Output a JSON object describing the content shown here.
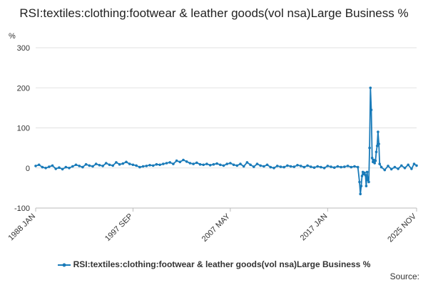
{
  "chart_data": {
    "type": "line",
    "title": "RSI:textiles:clothing:footwear & leather goods(vol nsa)Large Business %",
    "ylabel": "%",
    "ylim": [
      -100,
      300
    ],
    "yticks": [
      -100,
      0,
      100,
      200,
      300
    ],
    "xlim": [
      "1988-01",
      "2025-11"
    ],
    "xticks": [
      "1988 JAN",
      "1997 SEP",
      "2007 MAY",
      "2017 JAN",
      "2025 NOV"
    ],
    "grid": true,
    "legend_position": "bottom",
    "series": [
      {
        "name": "RSI:textiles:clothing:footwear & leather goods(vol nsa)Large Business %",
        "color": "#1a7bb9",
        "points": [
          [
            "1988-01",
            5
          ],
          [
            "1988-05",
            8
          ],
          [
            "1988-09",
            2
          ],
          [
            "1989-01",
            0
          ],
          [
            "1989-05",
            3
          ],
          [
            "1989-09",
            6
          ],
          [
            "1990-01",
            -2
          ],
          [
            "1990-05",
            1
          ],
          [
            "1990-09",
            -3
          ],
          [
            "1991-01",
            2
          ],
          [
            "1991-05",
            0
          ],
          [
            "1991-09",
            4
          ],
          [
            "1992-01",
            8
          ],
          [
            "1992-05",
            5
          ],
          [
            "1992-09",
            2
          ],
          [
            "1993-01",
            9
          ],
          [
            "1993-05",
            6
          ],
          [
            "1993-09",
            4
          ],
          [
            "1994-01",
            10
          ],
          [
            "1994-05",
            7
          ],
          [
            "1994-09",
            5
          ],
          [
            "1995-01",
            12
          ],
          [
            "1995-05",
            8
          ],
          [
            "1995-09",
            6
          ],
          [
            "1996-01",
            14
          ],
          [
            "1996-05",
            9
          ],
          [
            "1996-09",
            11
          ],
          [
            "1997-01",
            15
          ],
          [
            "1997-05",
            10
          ],
          [
            "1997-09",
            8
          ],
          [
            "1998-01",
            6
          ],
          [
            "1998-05",
            2
          ],
          [
            "1998-09",
            4
          ],
          [
            "1999-01",
            5
          ],
          [
            "1999-05",
            7
          ],
          [
            "1999-09",
            6
          ],
          [
            "2000-01",
            9
          ],
          [
            "2000-05",
            8
          ],
          [
            "2000-09",
            10
          ],
          [
            "2001-01",
            12
          ],
          [
            "2001-05",
            14
          ],
          [
            "2001-09",
            10
          ],
          [
            "2002-01",
            18
          ],
          [
            "2002-05",
            15
          ],
          [
            "2002-09",
            20
          ],
          [
            "2003-01",
            16
          ],
          [
            "2003-05",
            12
          ],
          [
            "2003-09",
            10
          ],
          [
            "2004-01",
            13
          ],
          [
            "2004-05",
            9
          ],
          [
            "2004-09",
            8
          ],
          [
            "2005-01",
            10
          ],
          [
            "2005-05",
            7
          ],
          [
            "2005-09",
            9
          ],
          [
            "2006-01",
            11
          ],
          [
            "2006-05",
            8
          ],
          [
            "2006-09",
            6
          ],
          [
            "2007-01",
            10
          ],
          [
            "2007-05",
            12
          ],
          [
            "2007-09",
            8
          ],
          [
            "2008-01",
            6
          ],
          [
            "2008-05",
            10
          ],
          [
            "2008-09",
            4
          ],
          [
            "2009-01",
            14
          ],
          [
            "2009-05",
            8
          ],
          [
            "2009-09",
            3
          ],
          [
            "2010-01",
            10
          ],
          [
            "2010-05",
            6
          ],
          [
            "2010-09",
            4
          ],
          [
            "2011-01",
            8
          ],
          [
            "2011-05",
            2
          ],
          [
            "2011-09",
            0
          ],
          [
            "2012-01",
            5
          ],
          [
            "2012-05",
            3
          ],
          [
            "2012-09",
            2
          ],
          [
            "2013-01",
            6
          ],
          [
            "2013-05",
            4
          ],
          [
            "2013-09",
            3
          ],
          [
            "2014-01",
            7
          ],
          [
            "2014-05",
            5
          ],
          [
            "2014-09",
            2
          ],
          [
            "2015-01",
            6
          ],
          [
            "2015-05",
            3
          ],
          [
            "2015-09",
            1
          ],
          [
            "2016-01",
            4
          ],
          [
            "2016-05",
            2
          ],
          [
            "2016-09",
            0
          ],
          [
            "2017-01",
            5
          ],
          [
            "2017-05",
            3
          ],
          [
            "2017-09",
            1
          ],
          [
            "2018-01",
            4
          ],
          [
            "2018-05",
            2
          ],
          [
            "2018-09",
            3
          ],
          [
            "2019-01",
            5
          ],
          [
            "2019-05",
            2
          ],
          [
            "2019-09",
            4
          ],
          [
            "2020-01",
            2
          ],
          [
            "2020-03",
            -35
          ],
          [
            "2020-04",
            -65
          ],
          [
            "2020-05",
            -45
          ],
          [
            "2020-06",
            -20
          ],
          [
            "2020-07",
            -10
          ],
          [
            "2020-08",
            -15
          ],
          [
            "2020-09",
            -12
          ],
          [
            "2020-10",
            -18
          ],
          [
            "2020-11",
            -45
          ],
          [
            "2020-12",
            -10
          ],
          [
            "2021-01",
            -30
          ],
          [
            "2021-02",
            -35
          ],
          [
            "2021-03",
            50
          ],
          [
            "2021-04",
            200
          ],
          [
            "2021-05",
            145
          ],
          [
            "2021-06",
            25
          ],
          [
            "2021-07",
            15
          ],
          [
            "2021-08",
            20
          ],
          [
            "2021-09",
            12
          ],
          [
            "2021-10",
            18
          ],
          [
            "2021-11",
            40
          ],
          [
            "2021-12",
            55
          ],
          [
            "2022-01",
            90
          ],
          [
            "2022-02",
            60
          ],
          [
            "2022-03",
            10
          ],
          [
            "2022-05",
            2
          ],
          [
            "2022-09",
            -5
          ],
          [
            "2023-01",
            5
          ],
          [
            "2023-05",
            -3
          ],
          [
            "2023-09",
            2
          ],
          [
            "2024-01",
            -2
          ],
          [
            "2024-05",
            6
          ],
          [
            "2024-09",
            0
          ],
          [
            "2025-01",
            8
          ],
          [
            "2025-05",
            -2
          ],
          [
            "2025-08",
            10
          ],
          [
            "2025-11",
            6
          ]
        ]
      }
    ]
  },
  "legend": {
    "label": "RSI:textiles:clothing:footwear & leather goods(vol nsa)Large Business %"
  },
  "source_label": "Source:"
}
